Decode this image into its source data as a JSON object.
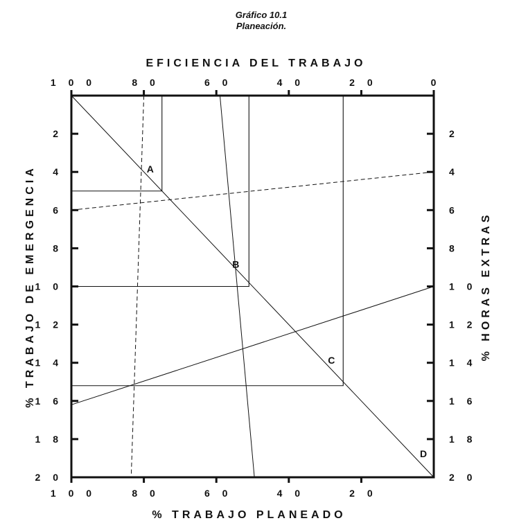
{
  "figure": {
    "caption": "Gráfico 10.1",
    "subtitle": "Planeación."
  },
  "chart_data": {
    "type": "line",
    "axes": {
      "top": {
        "label": "EFICIENCIA DEL TRABAJO",
        "range": [
          100,
          0
        ],
        "ticks": [
          100,
          80,
          60,
          40,
          20,
          0
        ]
      },
      "bottom": {
        "label": "% TRABAJO PLANEADO",
        "range": [
          100,
          0
        ],
        "ticks": [
          100,
          80,
          60,
          40,
          20
        ]
      },
      "left": {
        "label": "% TRABAJO DE EMERGENCIA",
        "range": [
          0,
          20
        ],
        "ticks": [
          2,
          4,
          6,
          8,
          10,
          12,
          14,
          16,
          18,
          20
        ]
      },
      "right": {
        "label": "% HORAS EXTRAS",
        "range": [
          0,
          20
        ],
        "ticks": [
          2,
          4,
          6,
          8,
          10,
          12,
          14,
          16,
          18,
          20
        ]
      }
    },
    "grid": false,
    "points": [
      {
        "label": "A",
        "x": 75,
        "y": 5
      },
      {
        "label": "B",
        "x": 51,
        "y": 10
      },
      {
        "label": "C",
        "x": 25,
        "y": 15.2
      },
      {
        "label": "D",
        "x": 0,
        "y": 20
      }
    ],
    "rectangles": [
      {
        "x": 75,
        "y": 5
      },
      {
        "x": 51,
        "y": 10
      },
      {
        "x": 25,
        "y": 15.2
      }
    ],
    "lines": [
      {
        "from": {
          "x": 100,
          "y": 0
        },
        "to": {
          "x": 0,
          "y": 20
        },
        "style": "solid"
      },
      {
        "from": {
          "x": 100,
          "y": 6
        },
        "to": {
          "x": 0,
          "y": 4
        },
        "style": "dashed"
      },
      {
        "from": {
          "x": 100,
          "y": 16.2
        },
        "to": {
          "x": 0,
          "y": 10
        },
        "style": "solid"
      },
      {
        "from": {
          "x": 80,
          "y": 0
        },
        "to": {
          "x": 83.5,
          "y": 20
        },
        "style": "dashed"
      },
      {
        "from": {
          "x": 59,
          "y": 0
        },
        "to": {
          "x": 49.5,
          "y": 20
        },
        "style": "solid"
      }
    ]
  },
  "colors": {
    "ink": "#111111",
    "background": "#ffffff"
  }
}
